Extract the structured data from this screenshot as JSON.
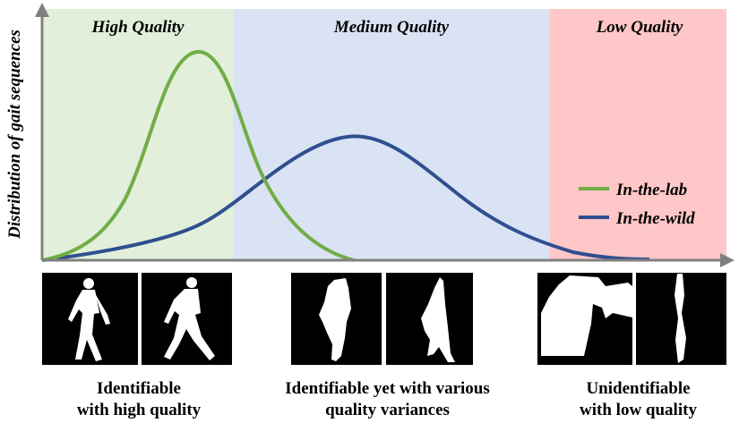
{
  "y_axis_label": "Distribution of gait sequences",
  "zones": [
    {
      "label": "High Quality",
      "fill": "#e2efda",
      "caption": [
        "Identifiable",
        "with high quality"
      ]
    },
    {
      "label": "Medium Quality",
      "fill": "#dae3f3",
      "caption": [
        "Identifiable yet with various",
        "quality variances"
      ]
    },
    {
      "label": "Low Quality",
      "fill": "#ffc7c7",
      "caption": [
        "Unidentifiable",
        "with low quality"
      ]
    }
  ],
  "legend": [
    {
      "label": "In-the-lab",
      "color": "#70ad47"
    },
    {
      "label": "In-the-wild",
      "color": "#2f4f8f"
    }
  ],
  "axis_color": "#808080",
  "silhouettes": [
    {
      "zone": 0,
      "kind": "walker-a"
    },
    {
      "zone": 0,
      "kind": "walker-b"
    },
    {
      "zone": 1,
      "kind": "partial-a"
    },
    {
      "zone": 1,
      "kind": "partial-b"
    },
    {
      "zone": 2,
      "kind": "blob"
    },
    {
      "zone": 2,
      "kind": "sliver"
    }
  ]
}
